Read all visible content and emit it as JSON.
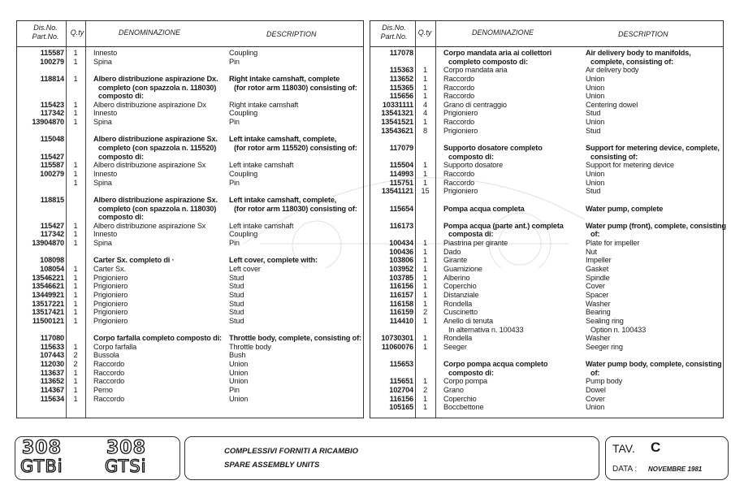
{
  "headers": {
    "part_no_1": "Dis.No.",
    "part_no_2": "Part.No.",
    "qty": "Q.ty",
    "denominazione": "DENOMINAZIONE",
    "description": "DESCRIPTION"
  },
  "left_rows": [
    {
      "part": "115587",
      "qty": "1",
      "it": "Innesto",
      "en": "Coupling"
    },
    {
      "part": "100279",
      "qty": "1",
      "it": "Spina",
      "en": "Pin"
    },
    {},
    {
      "part": "118814",
      "qty": "1",
      "it": "Albero distribuzione aspirazione Dx.",
      "en": "Right intake camshaft, complete",
      "bold": true
    },
    {
      "it": "completo (con spazzola n. 118030)",
      "en": "(for rotor arm 118030) consisting of:",
      "bold": true,
      "indent": true
    },
    {
      "it": "composto di:",
      "bold": true,
      "indent": true
    },
    {
      "part": "115423",
      "qty": "1",
      "it": "Albero distribuzione aspirazione Dx",
      "en": "Right intake camshaft"
    },
    {
      "part": "117342",
      "qty": "1",
      "it": "Innesto",
      "en": "Coupling"
    },
    {
      "part": "13904870",
      "qty": "1",
      "it": "Spina",
      "en": "Pin"
    },
    {},
    {
      "part": "115048",
      "it": "Albero distribuzione aspirazione Sx.",
      "en": "Left intake camshaft, complete,",
      "bold": true
    },
    {
      "it": "completo (con spazzola n. 115520)",
      "en": "(for rotor arm 115520) consisting of:",
      "bold": true,
      "indent": true
    },
    {
      "part": "115427",
      "it": "composto di:",
      "bold": true,
      "indent": true
    },
    {
      "part": "115587",
      "qty": "1",
      "it": "Albero distribuzione aspirazione Sx",
      "en": "Left intake camshaft"
    },
    {
      "part": "100279",
      "qty": "1",
      "it": "Innesto",
      "en": "Coupling"
    },
    {
      "qty": "1",
      "it": "Spina",
      "en": "Pin"
    },
    {},
    {
      "part": "118815",
      "it": "Albero distribuzione aspirazione Sx.",
      "en": "Left intake camshaft, complete,",
      "bold": true
    },
    {
      "it": "completo (con spazzola n. 118030)",
      "en": "(for rotor arm 118030) consisting of:",
      "bold": true,
      "indent": true
    },
    {
      "it": "composto di:",
      "bold": true,
      "indent": true
    },
    {
      "part": "115427",
      "qty": "1",
      "it": "Albero distribuzione aspirazione Sx",
      "en": "Left intake camshaft"
    },
    {
      "part": "117342",
      "qty": "1",
      "it": "Innesto",
      "en": "Coupling"
    },
    {
      "part": "13904870",
      "qty": "1",
      "it": "Spina",
      "en": "Pin"
    },
    {},
    {
      "part": "108098",
      "it": "Carter Sx. completo di ·",
      "en": "Left cover, complete with:",
      "bold": true
    },
    {
      "part": "108054",
      "qty": "1",
      "it": "Carter Sx.",
      "en": "Left cover"
    },
    {
      "part": "13546221",
      "qty": "1",
      "it": "Prigioniero",
      "en": "Stud"
    },
    {
      "part": "13546621",
      "qty": "1",
      "it": "Prigioniero",
      "en": "Stud"
    },
    {
      "part": "13449921",
      "qty": "1",
      "it": "Prigioniero",
      "en": "Stud"
    },
    {
      "part": "13517221",
      "qty": "1",
      "it": "Prigioniero",
      "en": "Stud"
    },
    {
      "part": "13517421",
      "qty": "1",
      "it": "Prigioniero",
      "en": "Stud"
    },
    {
      "part": "11500121",
      "qty": "1",
      "it": "Prigioniero",
      "en": "Stud"
    },
    {},
    {
      "part": "117080",
      "it": "Corpo farfalla completo composto di:",
      "en": "Throttle body, complete, consisting of:",
      "bold": true
    },
    {
      "part": "115633",
      "qty": "1",
      "it": "Corpo farfalla",
      "en": "Throttle body"
    },
    {
      "part": "107443",
      "qty": "2",
      "it": "Bussola",
      "en": "Bush"
    },
    {
      "part": "112030",
      "qty": "2",
      "it": "Raccordo",
      "en": "Union"
    },
    {
      "part": "113637",
      "qty": "1",
      "it": "Raccordo",
      "en": "Union"
    },
    {
      "part": "113652",
      "qty": "1",
      "it": "Raccordo",
      "en": "Union"
    },
    {
      "part": "114367",
      "qty": "1",
      "it": "Perno",
      "en": "Pin"
    },
    {
      "part": "115634",
      "qty": "1",
      "it": "Raccordo",
      "en": "Union"
    }
  ],
  "right_rows": [
    {
      "part": "117078",
      "it": "Corpo mandata aria ai collettori",
      "en": "Air delivery body to manifolds,",
      "bold": true
    },
    {
      "it": "completo composto di:",
      "en": "complete, consisting of:",
      "bold": true,
      "indent": true
    },
    {
      "part": "115363",
      "qty": "1",
      "it": "Corpo mandata aria",
      "en": "Air delivery body"
    },
    {
      "part": "113652",
      "qty": "1",
      "it": "Raccordo",
      "en": "Union"
    },
    {
      "part": "115365",
      "qty": "1",
      "it": "Raccordo",
      "en": "Union"
    },
    {
      "part": "115656",
      "qty": "1",
      "it": "Raccordo",
      "en": "Union"
    },
    {
      "part": "10331111",
      "qty": "4",
      "it": "Grano di centraggio",
      "en": "Centering dowel"
    },
    {
      "part": "13541321",
      "qty": "4",
      "it": "Prigioniero",
      "en": "Stud"
    },
    {
      "part": "13541521",
      "qty": "1",
      "it": "Raccordo",
      "en": "Union"
    },
    {
      "part": "13543621",
      "qty": "8",
      "it": "Prigioniero",
      "en": "Stud"
    },
    {},
    {
      "part": "117079",
      "it": "Supporto dosatore completo",
      "en": "Support for metering device, complete,",
      "bold": true
    },
    {
      "it": "composto di:",
      "en": "consisting of:",
      "bold": true,
      "indent": true
    },
    {
      "part": "115504",
      "qty": "1",
      "it": "Supporto dosatore",
      "en": "Support for metering device"
    },
    {
      "part": "114993",
      "qty": "1",
      "it": "Raccordo",
      "en": "Union"
    },
    {
      "part": "115751",
      "qty": "1",
      "it": "Raccordo",
      "en": "Union"
    },
    {
      "part": "13541121",
      "qty": "15",
      "it": "Prigioniero",
      "en": "Stud"
    },
    {},
    {
      "part": "115654",
      "it": "Pompa acqua completa",
      "en": "Water pump, complete",
      "bold": true
    },
    {},
    {
      "part": "116173",
      "it": "Pompa acqua (parte ant.) completa",
      "en": "Water pump (front), complete, consisting",
      "bold": true
    },
    {
      "it": "composta di:",
      "en": "of:",
      "bold": true,
      "indent": true
    },
    {
      "part": "100434",
      "qty": "1",
      "it": "Piastrina per girante",
      "en": "Plate for impeller"
    },
    {
      "part": "100436",
      "qty": "1",
      "it": "Dado",
      "en": "Nut"
    },
    {
      "part": "103806",
      "qty": "1",
      "it": "Girante",
      "en": "Impeller"
    },
    {
      "part": "103952",
      "qty": "1",
      "it": "Guarnizione",
      "en": "Gasket"
    },
    {
      "part": "103785",
      "qty": "1",
      "it": "Alberino",
      "en": "Spindle"
    },
    {
      "part": "116156",
      "qty": "1",
      "it": "Coperchio",
      "en": "Cover"
    },
    {
      "part": "116157",
      "qty": "1",
      "it": "Distanziale",
      "en": "Spacer"
    },
    {
      "part": "116158",
      "qty": "1",
      "it": "Rondella",
      "en": "Washer"
    },
    {
      "part": "116159",
      "qty": "2",
      "it": "Cuscinetto",
      "en": "Bearing"
    },
    {
      "part": "114410",
      "qty": "1",
      "it": "Anello di tenuta",
      "en": "Sealing ring"
    },
    {
      "it": "In alternativa n. 100433",
      "en": "Option n. 100433",
      "indent": true
    },
    {
      "part": "10730301",
      "qty": "1",
      "it": "Rondella",
      "en": "Washer"
    },
    {
      "part": "11060076",
      "qty": "1",
      "it": "Seeger",
      "en": "Seeger ring"
    },
    {},
    {
      "part": "115653",
      "it": "Corpo pompa acqua completo",
      "en": "Water pump body, complete, consisting",
      "bold": true
    },
    {
      "it": "composto di:",
      "en": "of:",
      "bold": true,
      "indent": true
    },
    {
      "part": "115651",
      "qty": "1",
      "it": "Corpo pompa",
      "en": "Pump body"
    },
    {
      "part": "102704",
      "qty": "2",
      "it": "Grano",
      "en": "Dowel"
    },
    {
      "part": "116156",
      "qty": "1",
      "it": "Coperchio",
      "en": "Cover"
    },
    {
      "part": "105165",
      "qty": "1",
      "it": "Boccbettone",
      "en": "Union"
    }
  ],
  "footer": {
    "logo_1_num": "308",
    "logo_1_model": "GTBi",
    "logo_2_num": "308",
    "logo_2_model": "GTSi",
    "title_it": "COMPLESSIVI FORNITI A RICAMBIO",
    "title_en": "SPARE  ASSEMBLY UNITS",
    "tav_label": "TAV.",
    "tav_value": "C",
    "data_label": "DATA :",
    "data_value": "NOVEMBRE 1981"
  }
}
